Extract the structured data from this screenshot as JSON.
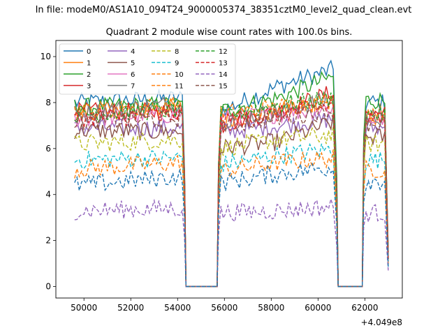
{
  "figure": {
    "suptitle": "In file: modeM0/AS1A10_094T24_9000005374_38351cztM0_level2_quad_clean.evt",
    "title": "Quadrant 2 module wise count rates with 100.0s bins.",
    "offset_label": "+4.049e8"
  },
  "chart_data": {
    "type": "line",
    "title": "Quadrant 2 module wise count rates with 100.0s bins.",
    "xlabel": "",
    "ylabel": "",
    "xlim": [
      48800,
      63600
    ],
    "ylim": [
      -0.5,
      10.7
    ],
    "x_offset": 404900000,
    "x_ticks": [
      50000,
      52000,
      54000,
      56000,
      58000,
      60000,
      62000
    ],
    "x_tick_labels": [
      "50000",
      "52000",
      "54000",
      "56000",
      "58000",
      "60000",
      "62000"
    ],
    "y_ticks": [
      0,
      2,
      4,
      6,
      8,
      10
    ],
    "y_tick_labels": [
      "0",
      "2",
      "4",
      "6",
      "8",
      "10"
    ],
    "grid": false,
    "legend": {
      "placement": "top-left",
      "ncol": 4
    },
    "gaps": [
      [
        54300,
        55750
      ],
      [
        60800,
        61950
      ]
    ],
    "segments": [
      [
        49600,
        54300
      ],
      [
        55750,
        60800
      ],
      [
        61950,
        63000
      ]
    ],
    "series": [
      {
        "name": "0",
        "color": "#1f77b4",
        "style": "solid",
        "values": [
          8.0,
          8.2,
          7.6,
          8.7,
          9.5,
          8.0
        ],
        "drop_end": 1.5
      },
      {
        "name": "1",
        "color": "#ff7f0e",
        "style": "solid",
        "values": [
          7.6,
          7.8,
          7.2,
          7.6,
          8.2,
          7.2
        ],
        "drop_end": 1.2
      },
      {
        "name": "2",
        "color": "#2ca02c",
        "style": "solid",
        "values": [
          7.8,
          7.9,
          7.6,
          8.2,
          9.2,
          8.1
        ],
        "drop_end": 1.5
      },
      {
        "name": "3",
        "color": "#d62728",
        "style": "solid",
        "values": [
          7.6,
          7.6,
          7.0,
          7.6,
          8.5,
          7.5
        ],
        "drop_end": 1.3
      },
      {
        "name": "4",
        "color": "#9467bd",
        "style": "solid",
        "values": [
          6.9,
          6.9,
          6.7,
          7.0,
          7.3,
          6.9
        ],
        "drop_end": 1.1
      },
      {
        "name": "5",
        "color": "#8c564b",
        "style": "solid",
        "values": [
          6.8,
          6.7,
          6.0,
          6.3,
          7.2,
          6.5
        ],
        "drop_end": 1.0
      },
      {
        "name": "6",
        "color": "#e377c2",
        "style": "solid",
        "values": [
          7.3,
          7.5,
          7.3,
          7.5,
          7.8,
          7.3
        ],
        "drop_end": 1.1
      },
      {
        "name": "7",
        "color": "#7f7f7f",
        "style": "solid",
        "values": [
          7.5,
          8.0,
          7.2,
          7.6,
          8.2,
          7.4
        ],
        "drop_end": 1.2
      },
      {
        "name": "8",
        "color": "#bcbd22",
        "style": "dashed",
        "values": [
          6.2,
          6.4,
          6.0,
          6.4,
          6.6,
          6.2
        ],
        "drop_end": 1.0
      },
      {
        "name": "9",
        "color": "#17becf",
        "style": "dashed",
        "values": [
          5.5,
          5.6,
          5.3,
          5.7,
          6.0,
          5.5
        ],
        "drop_end": 0.9
      },
      {
        "name": "10",
        "color": "#ff7f0e",
        "style": "dashed",
        "values": [
          5.1,
          5.4,
          5.0,
          5.4,
          5.6,
          5.1
        ],
        "drop_end": 0.9
      },
      {
        "name": "11",
        "color": "#ff7f0e",
        "style": "dashed",
        "values": [
          7.6,
          7.9,
          7.5,
          7.8,
          8.1,
          7.6
        ],
        "drop_end": 1.2
      },
      {
        "name": "12",
        "color": "#2ca02c",
        "style": "dashed",
        "values": [
          7.5,
          7.7,
          7.4,
          7.9,
          8.2,
          7.5
        ],
        "drop_end": 1.2
      },
      {
        "name": "13",
        "color": "#d62728",
        "style": "dashed",
        "values": [
          7.3,
          7.5,
          7.2,
          7.5,
          7.9,
          7.3
        ],
        "drop_end": 1.2
      },
      {
        "name": "14",
        "color": "#9467bd",
        "style": "dashed",
        "values": [
          3.3,
          3.4,
          3.2,
          3.3,
          3.5,
          3.2
        ],
        "drop_end": 0.7
      },
      {
        "name": "15",
        "color": "#8c564b",
        "style": "dashed",
        "values": [
          7.2,
          7.3,
          7.0,
          7.3,
          7.7,
          7.1
        ],
        "drop_end": 1.2
      },
      {
        "name": "",
        "color": "#1f77b4",
        "style": "dashed",
        "values": [
          4.4,
          4.8,
          4.5,
          4.9,
          5.2,
          4.6
        ],
        "drop_end": 0.8
      }
    ]
  }
}
